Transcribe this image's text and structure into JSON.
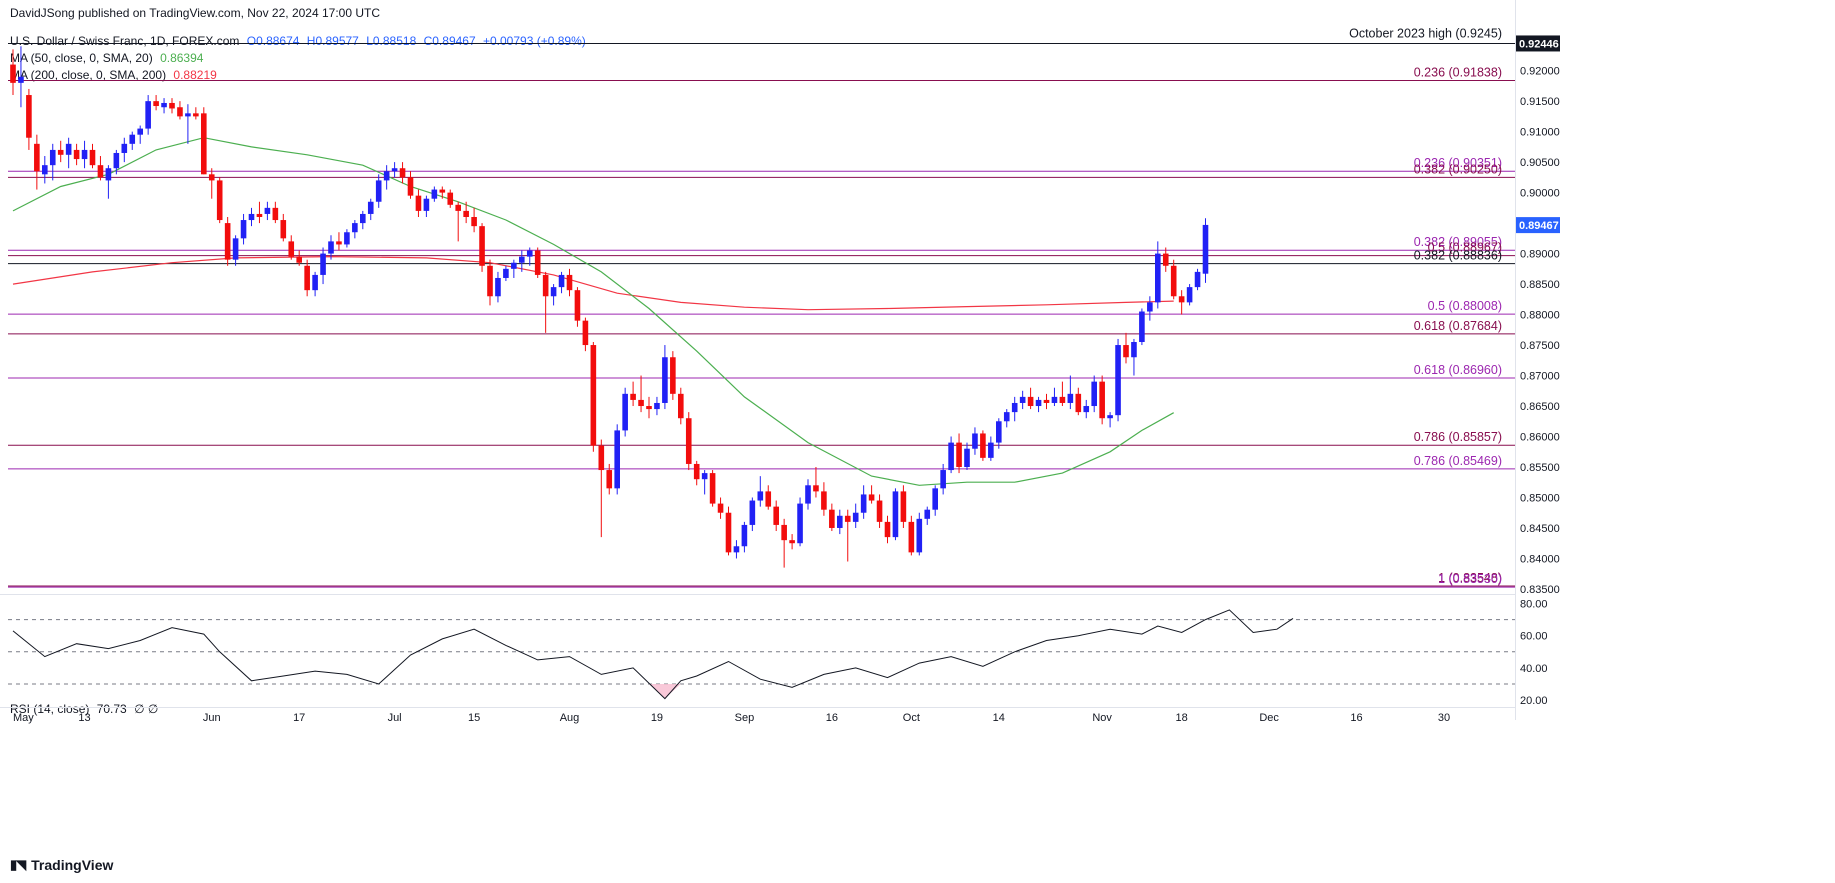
{
  "publisher": "DavidJSong published on TradingView.com, Nov 22, 2024 17:00 UTC",
  "legend": {
    "symbol": "U.S. Dollar / Swiss Franc, 1D, FOREX.com",
    "open": "O0.88674",
    "high": "H0.89577",
    "low": "L0.88518",
    "close": "C0.89467",
    "change": "+0.00793 (+0.89%)",
    "ma50_label": "MA (50, close, 0, SMA, 20)",
    "ma50_value": "0.86394",
    "ma200_label": "MA (200, close, 0, SMA, 200)",
    "ma200_value": "0.88219",
    "rsi_label": "RSI (14, close)",
    "rsi_value": "70.73",
    "rsi_extra": "∅ ∅"
  },
  "footer": {
    "logo": "TradingView"
  },
  "colors": {
    "up": "#2121f5",
    "down": "#f20d0d",
    "ma50": "#4caf50",
    "ma200": "#f23645",
    "fib_purple": "#9c27b0",
    "fib_red": "#880e4f",
    "black_line": "#131722",
    "rsi_line": "#131722"
  },
  "chart_data": {
    "type": "candlestick",
    "title": "U.S. Dollar / Swiss Franc, 1D, FOREX.com",
    "x_ticks": [
      "May",
      "13",
      "Jun",
      "17",
      "Jul",
      "15",
      "Aug",
      "19",
      "Sep",
      "16",
      "Oct",
      "14",
      "Nov",
      "18",
      "Dec",
      "16",
      "30"
    ],
    "y_ticks": [
      "0.92000",
      "0.91500",
      "0.91000",
      "0.90500",
      "0.90000",
      "0.89500",
      "0.89000",
      "0.88500",
      "0.88000",
      "0.87500",
      "0.87000",
      "0.86500",
      "0.86000",
      "0.85500",
      "0.85000",
      "0.84500",
      "0.84000",
      "0.83500"
    ],
    "ylim": [
      0.8345,
      0.9247
    ],
    "last_price": "0.89467",
    "top_price_label": "0.92446",
    "top_annotation": "October 2023 high (0.9245)",
    "levels": [
      {
        "label": "0.236 (0.91838)",
        "value": 0.91838,
        "color": "fib_red"
      },
      {
        "label": "0.236 (0.90351)",
        "value": 0.90351,
        "color": "fib_purple"
      },
      {
        "label": "0.382 (0.90250)",
        "value": 0.9025,
        "color": "fib_red"
      },
      {
        "label": "0.382 (0.89055)",
        "value": 0.89055,
        "color": "fib_purple"
      },
      {
        "label": "0.5 (0.88967)",
        "value": 0.88967,
        "color": "fib_red"
      },
      {
        "label": "0.382 (0.88836)",
        "value": 0.88836,
        "color": "black_line"
      },
      {
        "label": "0.5 (0.88008)",
        "value": 0.88008,
        "color": "fib_purple"
      },
      {
        "label": "0.618 (0.87684)",
        "value": 0.87684,
        "color": "fib_red"
      },
      {
        "label": "0.618 (0.86960)",
        "value": 0.8696,
        "color": "fib_purple"
      },
      {
        "label": "0.786 (0.85857)",
        "value": 0.85857,
        "color": "fib_red"
      },
      {
        "label": "0.786 (0.85469)",
        "value": 0.85469,
        "color": "fib_purple"
      },
      {
        "label": "1 (0.83548)",
        "value": 0.83548,
        "color": "fib_red"
      },
      {
        "label": "1 (0.83530)",
        "value": 0.8353,
        "color": "fib_purple"
      }
    ],
    "candles": [
      [
        0.921,
        0.9235,
        0.916,
        0.918
      ],
      [
        0.918,
        0.924,
        0.914,
        0.919
      ],
      [
        0.916,
        0.917,
        0.907,
        0.909
      ],
      [
        0.908,
        0.9095,
        0.9005,
        0.9035
      ],
      [
        0.903,
        0.906,
        0.9015,
        0.9045
      ],
      [
        0.9045,
        0.908,
        0.902,
        0.907
      ],
      [
        0.907,
        0.9085,
        0.905,
        0.9062
      ],
      [
        0.9062,
        0.909,
        0.904,
        0.908
      ],
      [
        0.907,
        0.908,
        0.9045,
        0.9055
      ],
      [
        0.9055,
        0.9085,
        0.904,
        0.907
      ],
      [
        0.907,
        0.908,
        0.904,
        0.9045
      ],
      [
        0.9045,
        0.906,
        0.902,
        0.9025
      ],
      [
        0.902,
        0.9045,
        0.899,
        0.904
      ],
      [
        0.904,
        0.907,
        0.903,
        0.9065
      ],
      [
        0.9065,
        0.909,
        0.905,
        0.908
      ],
      [
        0.908,
        0.91,
        0.907,
        0.9095
      ],
      [
        0.9095,
        0.911,
        0.908,
        0.9105
      ],
      [
        0.9105,
        0.916,
        0.9095,
        0.915
      ],
      [
        0.915,
        0.916,
        0.9135,
        0.9142
      ],
      [
        0.914,
        0.9155,
        0.913,
        0.9147
      ],
      [
        0.9147,
        0.9155,
        0.913,
        0.9138
      ],
      [
        0.914,
        0.915,
        0.912,
        0.9125
      ],
      [
        0.9125,
        0.9145,
        0.908,
        0.913
      ],
      [
        0.913,
        0.914,
        0.912,
        0.9125
      ],
      [
        0.913,
        0.914,
        0.903,
        0.903
      ],
      [
        0.903,
        0.904,
        0.899,
        0.902
      ],
      [
        0.902,
        0.9025,
        0.895,
        0.8955
      ],
      [
        0.895,
        0.896,
        0.888,
        0.889
      ],
      [
        0.889,
        0.893,
        0.888,
        0.8925
      ],
      [
        0.8925,
        0.8965,
        0.8915,
        0.8955
      ],
      [
        0.8955,
        0.8975,
        0.8945,
        0.8965
      ],
      [
        0.8965,
        0.8985,
        0.895,
        0.896
      ],
      [
        0.8965,
        0.8985,
        0.8955,
        0.8975
      ],
      [
        0.8975,
        0.8985,
        0.895,
        0.8955
      ],
      [
        0.8955,
        0.8965,
        0.892,
        0.8925
      ],
      [
        0.892,
        0.893,
        0.889,
        0.8895
      ],
      [
        0.8895,
        0.8905,
        0.888,
        0.8885
      ],
      [
        0.888,
        0.889,
        0.883,
        0.884
      ],
      [
        0.884,
        0.887,
        0.883,
        0.8865
      ],
      [
        0.8865,
        0.891,
        0.885,
        0.89
      ],
      [
        0.89,
        0.893,
        0.889,
        0.892
      ],
      [
        0.892,
        0.8935,
        0.8905,
        0.8915
      ],
      [
        0.8915,
        0.894,
        0.891,
        0.8935
      ],
      [
        0.8935,
        0.8955,
        0.8925,
        0.895
      ],
      [
        0.895,
        0.897,
        0.894,
        0.8965
      ],
      [
        0.8965,
        0.899,
        0.8955,
        0.8985
      ],
      [
        0.8985,
        0.903,
        0.8975,
        0.902
      ],
      [
        0.902,
        0.9045,
        0.9005,
        0.9035
      ],
      [
        0.9035,
        0.905,
        0.9025,
        0.904
      ],
      [
        0.904,
        0.905,
        0.9015,
        0.9025
      ],
      [
        0.9025,
        0.9035,
        0.899,
        0.8995
      ],
      [
        0.8995,
        0.9005,
        0.896,
        0.897
      ],
      [
        0.897,
        0.8995,
        0.896,
        0.899
      ],
      [
        0.899,
        0.901,
        0.8985,
        0.9005
      ],
      [
        0.9005,
        0.901,
        0.899,
        0.9
      ],
      [
        0.9,
        0.9005,
        0.8975,
        0.898
      ],
      [
        0.898,
        0.8985,
        0.892,
        0.897
      ],
      [
        0.897,
        0.8985,
        0.895,
        0.896
      ],
      [
        0.896,
        0.8975,
        0.8935,
        0.8945
      ],
      [
        0.8945,
        0.895,
        0.887,
        0.888
      ],
      [
        0.888,
        0.889,
        0.8815,
        0.883
      ],
      [
        0.883,
        0.887,
        0.882,
        0.886
      ],
      [
        0.886,
        0.888,
        0.8855,
        0.8875
      ],
      [
        0.8875,
        0.889,
        0.886,
        0.8885
      ],
      [
        0.8885,
        0.8905,
        0.887,
        0.8895
      ],
      [
        0.8895,
        0.891,
        0.888,
        0.8905
      ],
      [
        0.8905,
        0.891,
        0.886,
        0.8865
      ],
      [
        0.8865,
        0.887,
        0.877,
        0.883
      ],
      [
        0.883,
        0.885,
        0.8815,
        0.8845
      ],
      [
        0.8845,
        0.887,
        0.8835,
        0.8865
      ],
      [
        0.8865,
        0.8875,
        0.883,
        0.884
      ],
      [
        0.884,
        0.8845,
        0.878,
        0.879
      ],
      [
        0.879,
        0.8795,
        0.874,
        0.875
      ],
      [
        0.875,
        0.8755,
        0.8575,
        0.8585
      ],
      [
        0.8585,
        0.8595,
        0.8435,
        0.8545
      ],
      [
        0.8545,
        0.8555,
        0.8505,
        0.8515
      ],
      [
        0.8515,
        0.862,
        0.8505,
        0.861
      ],
      [
        0.861,
        0.868,
        0.86,
        0.867
      ],
      [
        0.867,
        0.869,
        0.865,
        0.866
      ],
      [
        0.866,
        0.87,
        0.864,
        0.865
      ],
      [
        0.865,
        0.8665,
        0.863,
        0.8645
      ],
      [
        0.8645,
        0.8665,
        0.8635,
        0.8655
      ],
      [
        0.8655,
        0.875,
        0.8645,
        0.873
      ],
      [
        0.873,
        0.874,
        0.866,
        0.867
      ],
      [
        0.867,
        0.868,
        0.862,
        0.863
      ],
      [
        0.863,
        0.864,
        0.8545,
        0.8555
      ],
      [
        0.8555,
        0.856,
        0.852,
        0.853
      ],
      [
        0.853,
        0.8545,
        0.8505,
        0.854
      ],
      [
        0.854,
        0.8545,
        0.8485,
        0.849
      ],
      [
        0.849,
        0.85,
        0.8465,
        0.8475
      ],
      [
        0.8475,
        0.8485,
        0.8405,
        0.841
      ],
      [
        0.841,
        0.843,
        0.84,
        0.842
      ],
      [
        0.842,
        0.846,
        0.841,
        0.8455
      ],
      [
        0.8455,
        0.85,
        0.8445,
        0.8495
      ],
      [
        0.8495,
        0.8535,
        0.8485,
        0.851
      ],
      [
        0.851,
        0.852,
        0.848,
        0.8485
      ],
      [
        0.8485,
        0.8495,
        0.8445,
        0.8455
      ],
      [
        0.8455,
        0.8465,
        0.8385,
        0.843
      ],
      [
        0.843,
        0.844,
        0.8415,
        0.8425
      ],
      [
        0.8425,
        0.85,
        0.842,
        0.849
      ],
      [
        0.849,
        0.853,
        0.848,
        0.852
      ],
      [
        0.852,
        0.855,
        0.85,
        0.851
      ],
      [
        0.851,
        0.8525,
        0.847,
        0.848
      ],
      [
        0.848,
        0.849,
        0.8445,
        0.845
      ],
      [
        0.845,
        0.848,
        0.844,
        0.847
      ],
      [
        0.847,
        0.848,
        0.8395,
        0.846
      ],
      [
        0.846,
        0.849,
        0.845,
        0.8475
      ],
      [
        0.8475,
        0.852,
        0.8465,
        0.8505
      ],
      [
        0.8505,
        0.852,
        0.849,
        0.8495
      ],
      [
        0.8495,
        0.8505,
        0.845,
        0.846
      ],
      [
        0.846,
        0.847,
        0.8425,
        0.8435
      ],
      [
        0.8435,
        0.8515,
        0.843,
        0.851
      ],
      [
        0.851,
        0.852,
        0.845,
        0.846
      ],
      [
        0.846,
        0.847,
        0.8405,
        0.841
      ],
      [
        0.841,
        0.8475,
        0.8405,
        0.8465
      ],
      [
        0.8465,
        0.8485,
        0.8455,
        0.848
      ],
      [
        0.848,
        0.852,
        0.847,
        0.8515
      ],
      [
        0.8515,
        0.8555,
        0.8505,
        0.8545
      ],
      [
        0.8545,
        0.86,
        0.854,
        0.859
      ],
      [
        0.859,
        0.8605,
        0.854,
        0.855
      ],
      [
        0.855,
        0.859,
        0.8545,
        0.858
      ],
      [
        0.858,
        0.8615,
        0.857,
        0.8605
      ],
      [
        0.8605,
        0.861,
        0.856,
        0.8565
      ],
      [
        0.8565,
        0.86,
        0.856,
        0.859
      ],
      [
        0.859,
        0.863,
        0.858,
        0.8625
      ],
      [
        0.8625,
        0.8645,
        0.8615,
        0.864
      ],
      [
        0.864,
        0.8665,
        0.8625,
        0.8655
      ],
      [
        0.8655,
        0.8675,
        0.8645,
        0.8665
      ],
      [
        0.8665,
        0.868,
        0.8645,
        0.865
      ],
      [
        0.865,
        0.8665,
        0.864,
        0.866
      ],
      [
        0.866,
        0.867,
        0.8645,
        0.8655
      ],
      [
        0.8655,
        0.868,
        0.865,
        0.8665
      ],
      [
        0.8665,
        0.869,
        0.865,
        0.8655
      ],
      [
        0.8655,
        0.87,
        0.8645,
        0.867
      ],
      [
        0.867,
        0.868,
        0.8635,
        0.864
      ],
      [
        0.864,
        0.866,
        0.863,
        0.865
      ],
      [
        0.865,
        0.87,
        0.864,
        0.869
      ],
      [
        0.869,
        0.87,
        0.862,
        0.863
      ],
      [
        0.863,
        0.864,
        0.8615,
        0.8635
      ],
      [
        0.8635,
        0.876,
        0.8625,
        0.875
      ],
      [
        0.875,
        0.877,
        0.872,
        0.873
      ],
      [
        0.873,
        0.876,
        0.87,
        0.8755
      ],
      [
        0.8755,
        0.881,
        0.875,
        0.8805
      ],
      [
        0.8805,
        0.883,
        0.879,
        0.882
      ],
      [
        0.882,
        0.892,
        0.881,
        0.89
      ],
      [
        0.89,
        0.891,
        0.887,
        0.888
      ],
      [
        0.888,
        0.889,
        0.8825,
        0.883
      ],
      [
        0.883,
        0.884,
        0.88,
        0.882
      ],
      [
        0.882,
        0.885,
        0.8815,
        0.8845
      ],
      [
        0.8845,
        0.8875,
        0.884,
        0.887
      ],
      [
        0.8867,
        0.8958,
        0.8852,
        0.8947
      ]
    ],
    "ma50": [
      [
        0,
        0.897
      ],
      [
        6,
        0.901
      ],
      [
        12,
        0.903
      ],
      [
        18,
        0.907
      ],
      [
        24,
        0.909
      ],
      [
        30,
        0.9075
      ],
      [
        37,
        0.9062
      ],
      [
        44,
        0.9045
      ],
      [
        50,
        0.901
      ],
      [
        56,
        0.8985
      ],
      [
        62,
        0.8955
      ],
      [
        68,
        0.8915
      ],
      [
        74,
        0.887
      ],
      [
        80,
        0.881
      ],
      [
        86,
        0.874
      ],
      [
        92,
        0.8665
      ],
      [
        100,
        0.859
      ],
      [
        108,
        0.8535
      ],
      [
        114,
        0.852
      ],
      [
        120,
        0.8525
      ],
      [
        126,
        0.8525
      ],
      [
        132,
        0.854
      ],
      [
        138,
        0.8575
      ],
      [
        142,
        0.861
      ],
      [
        146,
        0.8639
      ]
    ],
    "ma200": [
      [
        0,
        0.885
      ],
      [
        10,
        0.887
      ],
      [
        20,
        0.8885
      ],
      [
        28,
        0.8893
      ],
      [
        40,
        0.8895
      ],
      [
        52,
        0.8893
      ],
      [
        60,
        0.8885
      ],
      [
        68,
        0.8865
      ],
      [
        76,
        0.8835
      ],
      [
        84,
        0.882
      ],
      [
        92,
        0.8812
      ],
      [
        100,
        0.8808
      ],
      [
        110,
        0.881
      ],
      [
        120,
        0.8813
      ],
      [
        130,
        0.8816
      ],
      [
        140,
        0.882
      ],
      [
        146,
        0.8822
      ]
    ],
    "rsi": {
      "ylim": [
        17,
        84
      ],
      "ticks": [
        "80.00",
        "60.00",
        "40.00",
        "20.00"
      ],
      "levels": [
        70,
        50,
        30
      ],
      "last": 70.73,
      "points": [
        [
          0,
          63
        ],
        [
          4,
          47
        ],
        [
          8,
          55
        ],
        [
          12,
          52
        ],
        [
          16,
          57
        ],
        [
          20,
          65
        ],
        [
          24,
          61
        ],
        [
          26,
          50
        ],
        [
          30,
          32
        ],
        [
          34,
          35
        ],
        [
          38,
          38
        ],
        [
          42,
          36
        ],
        [
          46,
          30
        ],
        [
          50,
          48
        ],
        [
          54,
          58
        ],
        [
          58,
          64
        ],
        [
          62,
          54
        ],
        [
          66,
          45
        ],
        [
          70,
          47
        ],
        [
          74,
          36
        ],
        [
          78,
          40
        ],
        [
          82,
          21
        ],
        [
          84,
          32
        ],
        [
          86,
          35
        ],
        [
          90,
          44
        ],
        [
          94,
          33
        ],
        [
          98,
          28
        ],
        [
          102,
          36
        ],
        [
          106,
          40
        ],
        [
          110,
          34
        ],
        [
          114,
          43
        ],
        [
          118,
          47
        ],
        [
          122,
          41
        ],
        [
          126,
          50
        ],
        [
          130,
          57
        ],
        [
          134,
          60
        ],
        [
          138,
          64
        ],
        [
          142,
          61
        ],
        [
          144,
          66
        ],
        [
          147,
          62
        ],
        [
          150,
          70
        ],
        [
          153,
          76
        ],
        [
          156,
          62
        ],
        [
          159,
          64
        ],
        [
          161,
          70.73
        ]
      ]
    }
  }
}
